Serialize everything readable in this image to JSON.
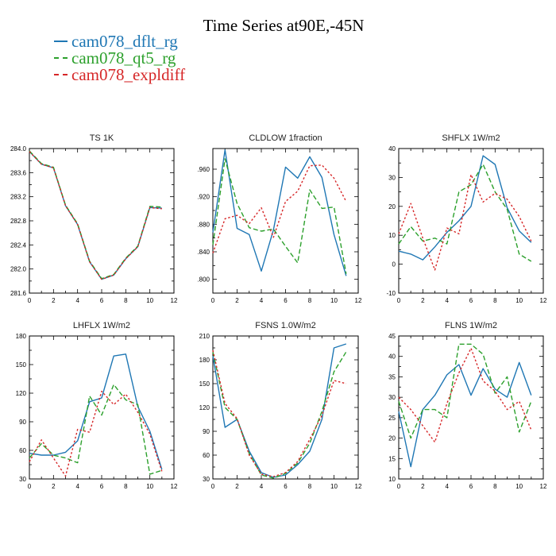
{
  "title": "Time Series at90E,-45N",
  "legend": [
    {
      "label": "cam078_dflt_rg",
      "color": "#1f77b4",
      "dash": "solid"
    },
    {
      "label": "cam078_qt5_rg",
      "color": "#2ca02c",
      "dash": "dash"
    },
    {
      "label": "cam078_expldiff",
      "color": "#d62728",
      "dash": "dot"
    }
  ],
  "chart_data": [
    {
      "type": "line",
      "title": "TS   1K",
      "xlim": [
        0,
        12
      ],
      "ylim": [
        281.6,
        284.0
      ],
      "xticks": [
        0,
        2,
        4,
        6,
        8,
        10,
        12
      ],
      "xtick_labels": [
        "0",
        "2",
        "4",
        "6",
        "8",
        "10",
        "12"
      ],
      "yticks": [
        281.6,
        282.0,
        282.4,
        282.8,
        283.2,
        283.6,
        284.0
      ],
      "ytick_labels": [
        "281.6",
        "282.0",
        "282.4",
        "282.8",
        "283.2",
        "283.6",
        "284.0"
      ],
      "x": [
        0,
        1,
        2,
        3,
        4,
        5,
        6,
        7,
        8,
        9,
        10,
        11
      ],
      "series": [
        {
          "name": "cam078_dflt_rg",
          "values": [
            283.95,
            283.74,
            283.68,
            283.05,
            282.74,
            282.12,
            281.83,
            281.9,
            282.17,
            282.37,
            283.02,
            283.01
          ]
        },
        {
          "name": "cam078_qt5_rg",
          "values": [
            283.96,
            283.75,
            283.69,
            283.06,
            282.75,
            282.13,
            281.84,
            281.91,
            282.18,
            282.38,
            283.04,
            283.03
          ]
        },
        {
          "name": "cam078_expldiff",
          "values": [
            283.95,
            283.74,
            283.68,
            283.05,
            282.74,
            282.12,
            281.83,
            281.9,
            282.17,
            282.37,
            283.02,
            283.0
          ]
        }
      ]
    },
    {
      "type": "line",
      "title": "CLDLOW   1fraction",
      "xlim": [
        0,
        12
      ],
      "ylim": [
        0.78,
        0.99
      ],
      "xticks": [
        0,
        2,
        4,
        6,
        8,
        10,
        12
      ],
      "xtick_labels": [
        "0",
        "2",
        "4",
        "6",
        "8",
        "10",
        "12"
      ],
      "yticks": [
        0.8,
        0.84,
        0.88,
        0.92,
        0.96
      ],
      "ytick_labels": [
        ".800",
        ".840",
        ".880",
        ".920",
        ".960"
      ],
      "x": [
        0,
        1,
        2,
        3,
        4,
        5,
        6,
        7,
        8,
        9,
        10,
        11
      ],
      "series": [
        {
          "name": "cam078_dflt_rg",
          "values": [
            0.868,
            0.988,
            0.874,
            0.865,
            0.812,
            0.872,
            0.963,
            0.947,
            0.978,
            0.948,
            0.865,
            0.805
          ]
        },
        {
          "name": "cam078_qt5_rg",
          "values": [
            0.85,
            0.975,
            0.91,
            0.875,
            0.87,
            0.873,
            0.848,
            0.824,
            0.93,
            0.903,
            0.905,
            0.808
          ]
        },
        {
          "name": "cam078_expldiff",
          "values": [
            0.838,
            0.888,
            0.893,
            0.881,
            0.904,
            0.861,
            0.913,
            0.928,
            0.965,
            0.966,
            0.947,
            0.913
          ]
        }
      ]
    },
    {
      "type": "line",
      "title": "SHFLX   1W/m2",
      "xlim": [
        0,
        12
      ],
      "ylim": [
        -10,
        40
      ],
      "xticks": [
        0,
        2,
        4,
        6,
        8,
        10,
        12
      ],
      "xtick_labels": [
        "0",
        "2",
        "4",
        "6",
        "8",
        "10",
        "12"
      ],
      "yticks": [
        -10,
        0,
        10,
        20,
        30,
        40
      ],
      "ytick_labels": [
        "-10",
        "0",
        "10",
        "20",
        "30",
        "40"
      ],
      "x": [
        0,
        1,
        2,
        3,
        4,
        5,
        6,
        7,
        8,
        9,
        10,
        11
      ],
      "series": [
        {
          "name": "cam078_dflt_rg",
          "values": [
            4.5,
            3.5,
            1.5,
            6.0,
            11.0,
            15.0,
            20.0,
            37.5,
            34.5,
            19.5,
            11.5,
            7.5
          ]
        },
        {
          "name": "cam078_qt5_rg",
          "values": [
            7.0,
            13.0,
            8.0,
            9.0,
            7.0,
            25.0,
            27.5,
            34.5,
            25.0,
            19.0,
            3.5,
            1.0
          ]
        },
        {
          "name": "cam078_expldiff",
          "values": [
            10.5,
            21.0,
            9.0,
            -2.0,
            12.5,
            10.5,
            31.0,
            21.5,
            24.5,
            22.5,
            16.5,
            8.0
          ]
        }
      ]
    },
    {
      "type": "line",
      "title": "LHFLX   1W/m2",
      "xlim": [
        0,
        12
      ],
      "ylim": [
        30,
        180
      ],
      "xticks": [
        0,
        2,
        4,
        6,
        8,
        10,
        12
      ],
      "xtick_labels": [
        "0",
        "2",
        "4",
        "6",
        "8",
        "10",
        "12"
      ],
      "yticks": [
        30,
        60,
        90,
        120,
        150,
        180
      ],
      "ytick_labels": [
        "30",
        "60",
        "90",
        "120",
        "150",
        "180"
      ],
      "x": [
        0,
        1,
        2,
        3,
        4,
        5,
        6,
        7,
        8,
        9,
        10,
        11
      ],
      "series": [
        {
          "name": "cam078_dflt_rg",
          "values": [
            57,
            55,
            55,
            58,
            70,
            111,
            115,
            159,
            161,
            106,
            80,
            40
          ]
        },
        {
          "name": "cam078_qt5_rg",
          "values": [
            52,
            67,
            55,
            52,
            47,
            117,
            97,
            129,
            113,
            108,
            35,
            39
          ]
        },
        {
          "name": "cam078_expldiff",
          "values": [
            48,
            71,
            52,
            33,
            82,
            79,
            122,
            108,
            119,
            100,
            77,
            38
          ]
        }
      ]
    },
    {
      "type": "line",
      "title": "FSNS   1.0W/m2",
      "xlim": [
        0,
        12
      ],
      "ylim": [
        30,
        210
      ],
      "xticks": [
        0,
        2,
        4,
        6,
        8,
        10,
        12
      ],
      "xtick_labels": [
        "0",
        "2",
        "4",
        "6",
        "8",
        "10",
        "12"
      ],
      "yticks": [
        30,
        60,
        90,
        120,
        150,
        180,
        210
      ],
      "ytick_labels": [
        "30",
        "60",
        "90",
        "120",
        "150",
        "180",
        "210"
      ],
      "x": [
        0,
        1,
        2,
        3,
        4,
        5,
        6,
        7,
        8,
        9,
        10,
        11
      ],
      "series": [
        {
          "name": "cam078_dflt_rg",
          "values": [
            185,
            95,
            105,
            65,
            38,
            32,
            35,
            48,
            65,
            105,
            195,
            200
          ]
        },
        {
          "name": "cam078_qt5_rg",
          "values": [
            190,
            120,
            105,
            62,
            35,
            31,
            37,
            50,
            75,
            115,
            165,
            190
          ]
        },
        {
          "name": "cam078_expldiff",
          "values": [
            192,
            125,
            106,
            60,
            36,
            33,
            38,
            52,
            80,
            110,
            154,
            150
          ]
        }
      ]
    },
    {
      "type": "line",
      "title": "FLNS   1W/m2",
      "xlim": [
        0,
        12
      ],
      "ylim": [
        10,
        45
      ],
      "xticks": [
        0,
        2,
        4,
        6,
        8,
        10,
        12
      ],
      "xtick_labels": [
        "0",
        "2",
        "4",
        "6",
        "8",
        "10",
        "12"
      ],
      "yticks": [
        10,
        15,
        20,
        25,
        30,
        35,
        40,
        45
      ],
      "ytick_labels": [
        "10",
        "15",
        "20",
        "25",
        "30",
        "35",
        "40",
        "45"
      ],
      "x": [
        0,
        1,
        2,
        3,
        4,
        5,
        6,
        7,
        8,
        9,
        10,
        11
      ],
      "series": [
        {
          "name": "cam078_dflt_rg",
          "values": [
            26.5,
            13.0,
            27.0,
            30.5,
            35.5,
            38.0,
            30.5,
            37.0,
            32.0,
            30.0,
            38.5,
            30.5
          ]
        },
        {
          "name": "cam078_qt5_rg",
          "values": [
            29.0,
            20.0,
            27.0,
            27.0,
            25.0,
            43.0,
            43.0,
            40.5,
            31.0,
            35.0,
            21.5,
            29.0
          ]
        },
        {
          "name": "cam078_expldiff",
          "values": [
            30.0,
            27.0,
            23.0,
            19.0,
            28.5,
            36.0,
            42.0,
            34.0,
            31.5,
            27.0,
            29.0,
            22.0
          ]
        }
      ]
    }
  ]
}
